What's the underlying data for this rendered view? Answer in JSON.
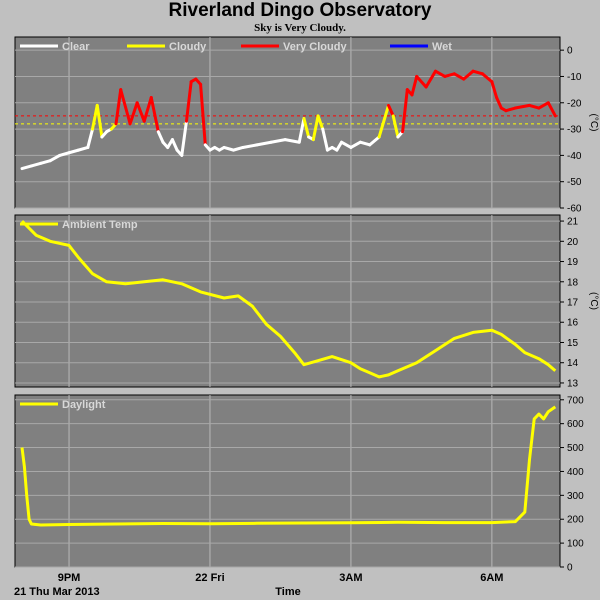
{
  "title": "Riverland Dingo Observatory",
  "subtitle": "Sky is Very Cloudy.",
  "x_axis": {
    "label": "Time",
    "date_label": "21 Thu Mar 2013",
    "ticks": [
      {
        "t": 1.0,
        "label": "9PM"
      },
      {
        "t": 4.0,
        "label": "22 Fri"
      },
      {
        "t": 7.0,
        "label": "3AM"
      },
      {
        "t": 10.0,
        "label": "6AM"
      }
    ],
    "range": [
      -0.15,
      11.45
    ]
  },
  "colors": {
    "panel_bg": "#808080",
    "page_bg": "#c0c0c0",
    "clear": "#ffffff",
    "cloudy": "#ffff00",
    "very_cloudy": "#ff0000",
    "wet": "#0000ff",
    "series": "#ffff00"
  },
  "chart_data": [
    {
      "type": "line",
      "name": "sky",
      "legend": [
        {
          "label": "Clear",
          "color": "#ffffff"
        },
        {
          "label": "Cloudy",
          "color": "#ffff00"
        },
        {
          "label": "Very Cloudy",
          "color": "#ff0000"
        },
        {
          "label": "Wet",
          "color": "#0000ff"
        }
      ],
      "ylim": [
        -60,
        5
      ],
      "yticks": [
        0,
        -10,
        -20,
        -30,
        -40,
        -50,
        -60
      ],
      "ylabel": "(°C)",
      "thresholds": [
        {
          "value": -25,
          "color": "#ff0000"
        },
        {
          "value": -28,
          "color": "#ffff00"
        }
      ],
      "x": [
        0.0,
        0.2,
        0.4,
        0.6,
        0.8,
        1.0,
        1.2,
        1.4,
        1.5,
        1.6,
        1.7,
        1.8,
        1.9,
        2.0,
        2.1,
        2.3,
        2.45,
        2.6,
        2.75,
        2.9,
        3.0,
        3.1,
        3.2,
        3.3,
        3.4,
        3.5,
        3.6,
        3.7,
        3.8,
        3.9,
        4.0,
        4.1,
        4.2,
        4.3,
        4.5,
        4.7,
        5.0,
        5.3,
        5.6,
        5.9,
        6.0,
        6.1,
        6.2,
        6.3,
        6.4,
        6.5,
        6.6,
        6.7,
        6.8,
        7.0,
        7.2,
        7.4,
        7.6,
        7.8,
        7.9,
        8.0,
        8.1,
        8.2,
        8.3,
        8.4,
        8.6,
        8.8,
        9.0,
        9.2,
        9.4,
        9.6,
        9.8,
        10.0,
        10.1,
        10.2,
        10.3,
        10.5,
        10.8,
        11.0,
        11.2,
        11.35
      ],
      "y": [
        -45,
        -44,
        -43,
        -42,
        -40,
        -39,
        -38,
        -37,
        -30,
        -21,
        -33,
        -31,
        -30,
        -28,
        -15,
        -28,
        -20,
        -27,
        -18,
        -31,
        -35,
        -37,
        -34,
        -38,
        -40,
        -27,
        -12,
        -11,
        -13,
        -36,
        -38,
        -37,
        -38,
        -37,
        -38,
        -37,
        -36,
        -35,
        -34,
        -35,
        -26,
        -33,
        -34,
        -25,
        -30,
        -38,
        -37,
        -38,
        -35,
        -37,
        -35,
        -36,
        -33,
        -21,
        -25,
        -33,
        -31,
        -15,
        -17,
        -10,
        -14,
        -8,
        -10,
        -9,
        -11,
        -8,
        -9,
        -12,
        -18,
        -22,
        -23,
        -22,
        -21,
        -22,
        -20,
        -25
      ]
    },
    {
      "type": "line",
      "name": "ambient",
      "legend": [
        {
          "label": "Ambient Temp",
          "color": "#ffff00"
        }
      ],
      "ylim": [
        12.8,
        21.3
      ],
      "yticks": [
        13,
        14,
        15,
        16,
        17,
        18,
        19,
        20,
        21
      ],
      "ylabel": "(°C)",
      "x": [
        0.0,
        0.3,
        0.6,
        1.0,
        1.2,
        1.5,
        1.8,
        2.2,
        2.6,
        3.0,
        3.4,
        3.8,
        4.3,
        4.6,
        4.9,
        5.2,
        5.5,
        5.8,
        6.0,
        6.3,
        6.6,
        7.0,
        7.2,
        7.4,
        7.6,
        7.8,
        8.0,
        8.4,
        8.8,
        9.2,
        9.6,
        10.0,
        10.2,
        10.5,
        10.7,
        11.0,
        11.2,
        11.35
      ],
      "y": [
        21.0,
        20.3,
        20.0,
        19.8,
        19.2,
        18.4,
        18.0,
        17.9,
        18.0,
        18.1,
        17.9,
        17.5,
        17.2,
        17.3,
        16.8,
        15.9,
        15.3,
        14.5,
        13.9,
        14.1,
        14.3,
        14.0,
        13.7,
        13.5,
        13.3,
        13.4,
        13.6,
        14.0,
        14.6,
        15.2,
        15.5,
        15.6,
        15.4,
        14.9,
        14.5,
        14.2,
        13.9,
        13.6
      ]
    },
    {
      "type": "line",
      "name": "daylight",
      "legend": [
        {
          "label": "Daylight",
          "color": "#ffff00"
        }
      ],
      "ylim": [
        0,
        720
      ],
      "yticks": [
        0,
        100,
        200,
        300,
        400,
        500,
        600,
        700
      ],
      "ylabel": "",
      "x": [
        0.0,
        0.05,
        0.1,
        0.15,
        0.2,
        0.3,
        0.4,
        1.0,
        2.0,
        3.0,
        4.0,
        5.0,
        6.0,
        7.0,
        8.0,
        9.0,
        10.0,
        10.5,
        10.7,
        10.8,
        10.9,
        11.0,
        11.1,
        11.2,
        11.35
      ],
      "y": [
        500,
        420,
        300,
        200,
        180,
        178,
        176,
        178,
        180,
        182,
        181,
        183,
        184,
        185,
        187,
        186,
        186,
        190,
        230,
        450,
        620,
        640,
        620,
        650,
        670
      ]
    }
  ]
}
